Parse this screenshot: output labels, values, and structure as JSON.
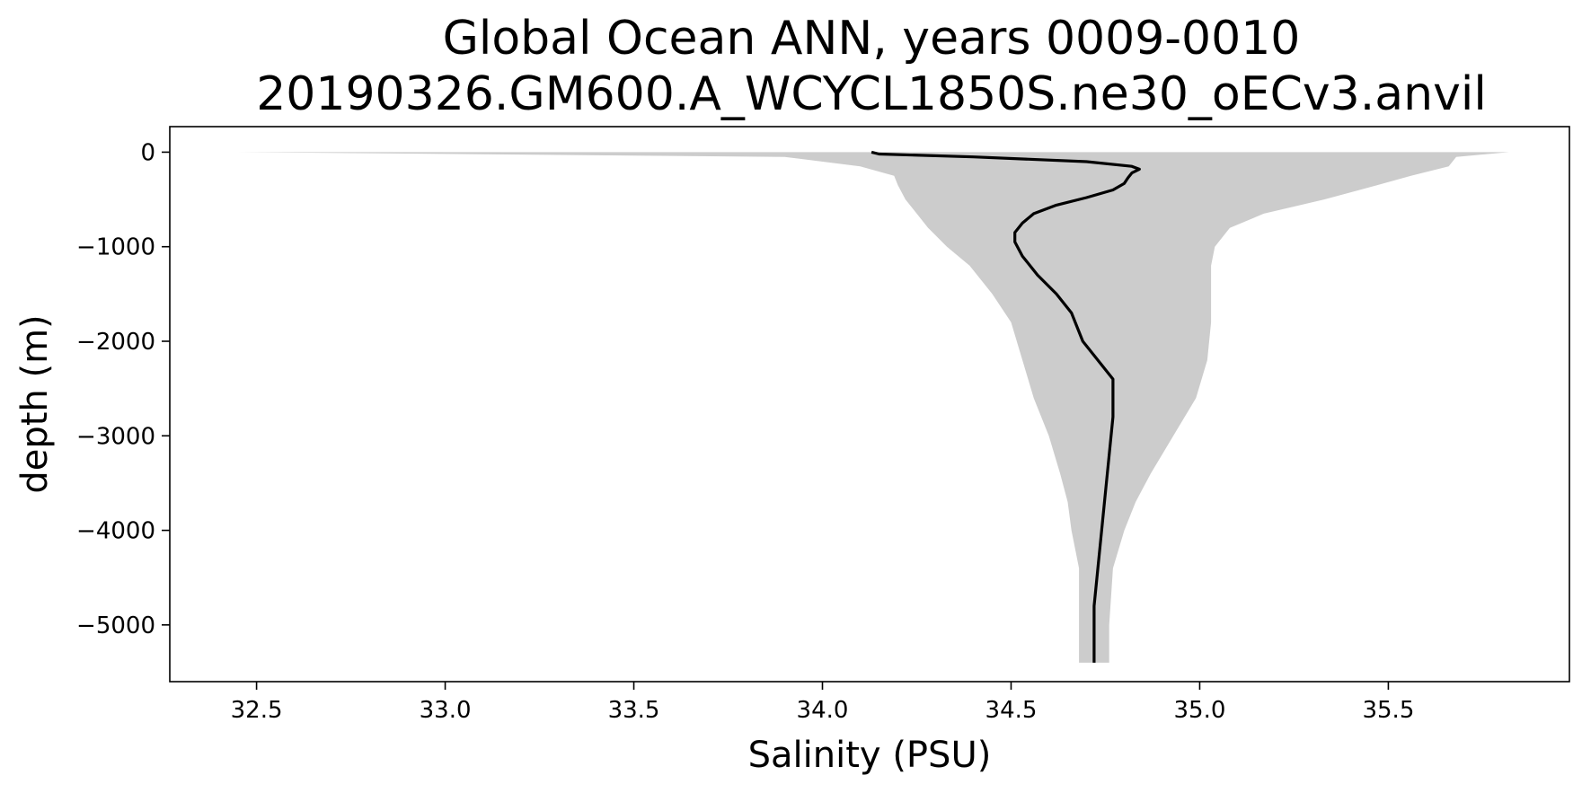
{
  "chart_data": {
    "type": "line",
    "title": "Global Ocean ANN, years 0009-0010",
    "subtitle": "20190326.GM600.A_WCYCL1850S.ne30_oECv3.anvil",
    "xlabel": "Salinity (PSU)",
    "ylabel": "depth (m)",
    "xlim": [
      32.27,
      35.98
    ],
    "ylim": [
      -5600,
      270
    ],
    "x_ticks": [
      32.5,
      33.0,
      33.5,
      34.0,
      34.5,
      35.0,
      35.5
    ],
    "x_tick_labels": [
      "32.5",
      "33.0",
      "33.5",
      "34.0",
      "34.5",
      "35.0",
      "35.5"
    ],
    "y_ticks": [
      0,
      -1000,
      -2000,
      -3000,
      -4000,
      -5000
    ],
    "y_tick_labels": [
      "0",
      "−1000",
      "−2000",
      "−3000",
      "−4000",
      "−5000"
    ],
    "grid": false,
    "line_color": "#000000",
    "band_color": "#cccccc",
    "band": {
      "depth": [
        0,
        -50,
        -150,
        -250,
        -350,
        -500,
        -650,
        -800,
        -1000,
        -1200,
        -1500,
        -1800,
        -2200,
        -2600,
        -3000,
        -3400,
        -3700,
        -4000,
        -4400,
        -5000,
        -5400
      ],
      "x_lower": [
        32.45,
        33.9,
        34.1,
        34.19,
        34.2,
        34.22,
        34.25,
        34.28,
        34.33,
        34.39,
        34.45,
        34.5,
        34.53,
        34.56,
        34.6,
        34.63,
        34.65,
        34.66,
        34.68,
        34.68,
        34.68
      ],
      "x_upper": [
        35.82,
        35.68,
        35.66,
        35.56,
        35.47,
        35.33,
        35.17,
        35.08,
        35.04,
        35.03,
        35.03,
        35.03,
        35.02,
        34.99,
        34.93,
        34.87,
        34.83,
        34.8,
        34.77,
        34.76,
        34.76
      ]
    },
    "series": [
      {
        "depth": [
          0,
          -20,
          -50,
          -100,
          -150,
          -180,
          -220,
          -270,
          -330,
          -400,
          -480,
          -560,
          -650,
          -750,
          -850,
          -950,
          -1100,
          -1300,
          -1500,
          -1700,
          -2000,
          -2400,
          -2800,
          -3200,
          -3600,
          -4000,
          -4400,
          -4800,
          -5200,
          -5400
        ],
        "x": [
          34.13,
          34.15,
          34.4,
          34.7,
          34.82,
          34.84,
          34.82,
          34.81,
          34.8,
          34.77,
          34.7,
          34.62,
          34.56,
          34.53,
          34.51,
          34.51,
          34.53,
          34.57,
          34.62,
          34.66,
          34.69,
          34.77,
          34.77,
          34.76,
          34.75,
          34.74,
          34.73,
          34.72,
          34.72,
          34.72
        ]
      }
    ]
  }
}
